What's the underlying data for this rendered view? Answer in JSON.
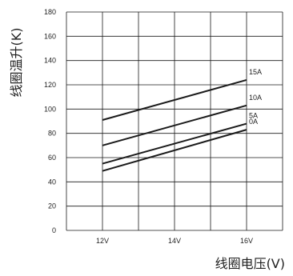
{
  "chart_data": {
    "type": "line",
    "xlabel": "线圈电压(V)",
    "ylabel": "线圈温升(K)",
    "x_values": [
      11,
      12,
      13,
      14,
      15,
      16,
      17
    ],
    "x_ticks": [
      {
        "value": 12,
        "label": "12V"
      },
      {
        "value": 14,
        "label": "14V"
      },
      {
        "value": 16,
        "label": "16V"
      }
    ],
    "xlim": [
      11,
      17
    ],
    "ylim": [
      0,
      180
    ],
    "y_ticks": [
      0,
      20,
      40,
      60,
      80,
      100,
      120,
      140,
      160,
      180
    ],
    "grid": true,
    "series": [
      {
        "name": "15A",
        "x": [
          12,
          16
        ],
        "y": [
          91,
          124
        ]
      },
      {
        "name": "10A",
        "x": [
          12,
          16
        ],
        "y": [
          70,
          103
        ]
      },
      {
        "name": "5A",
        "x": [
          12,
          16
        ],
        "y": [
          55,
          88
        ]
      },
      {
        "name": "0A",
        "x": [
          12,
          16
        ],
        "y": [
          49,
          83
        ]
      }
    ],
    "colors": {
      "line": "#1a1a1a",
      "grid": "#1a1a1a",
      "plot_background": "#ffffff"
    }
  }
}
